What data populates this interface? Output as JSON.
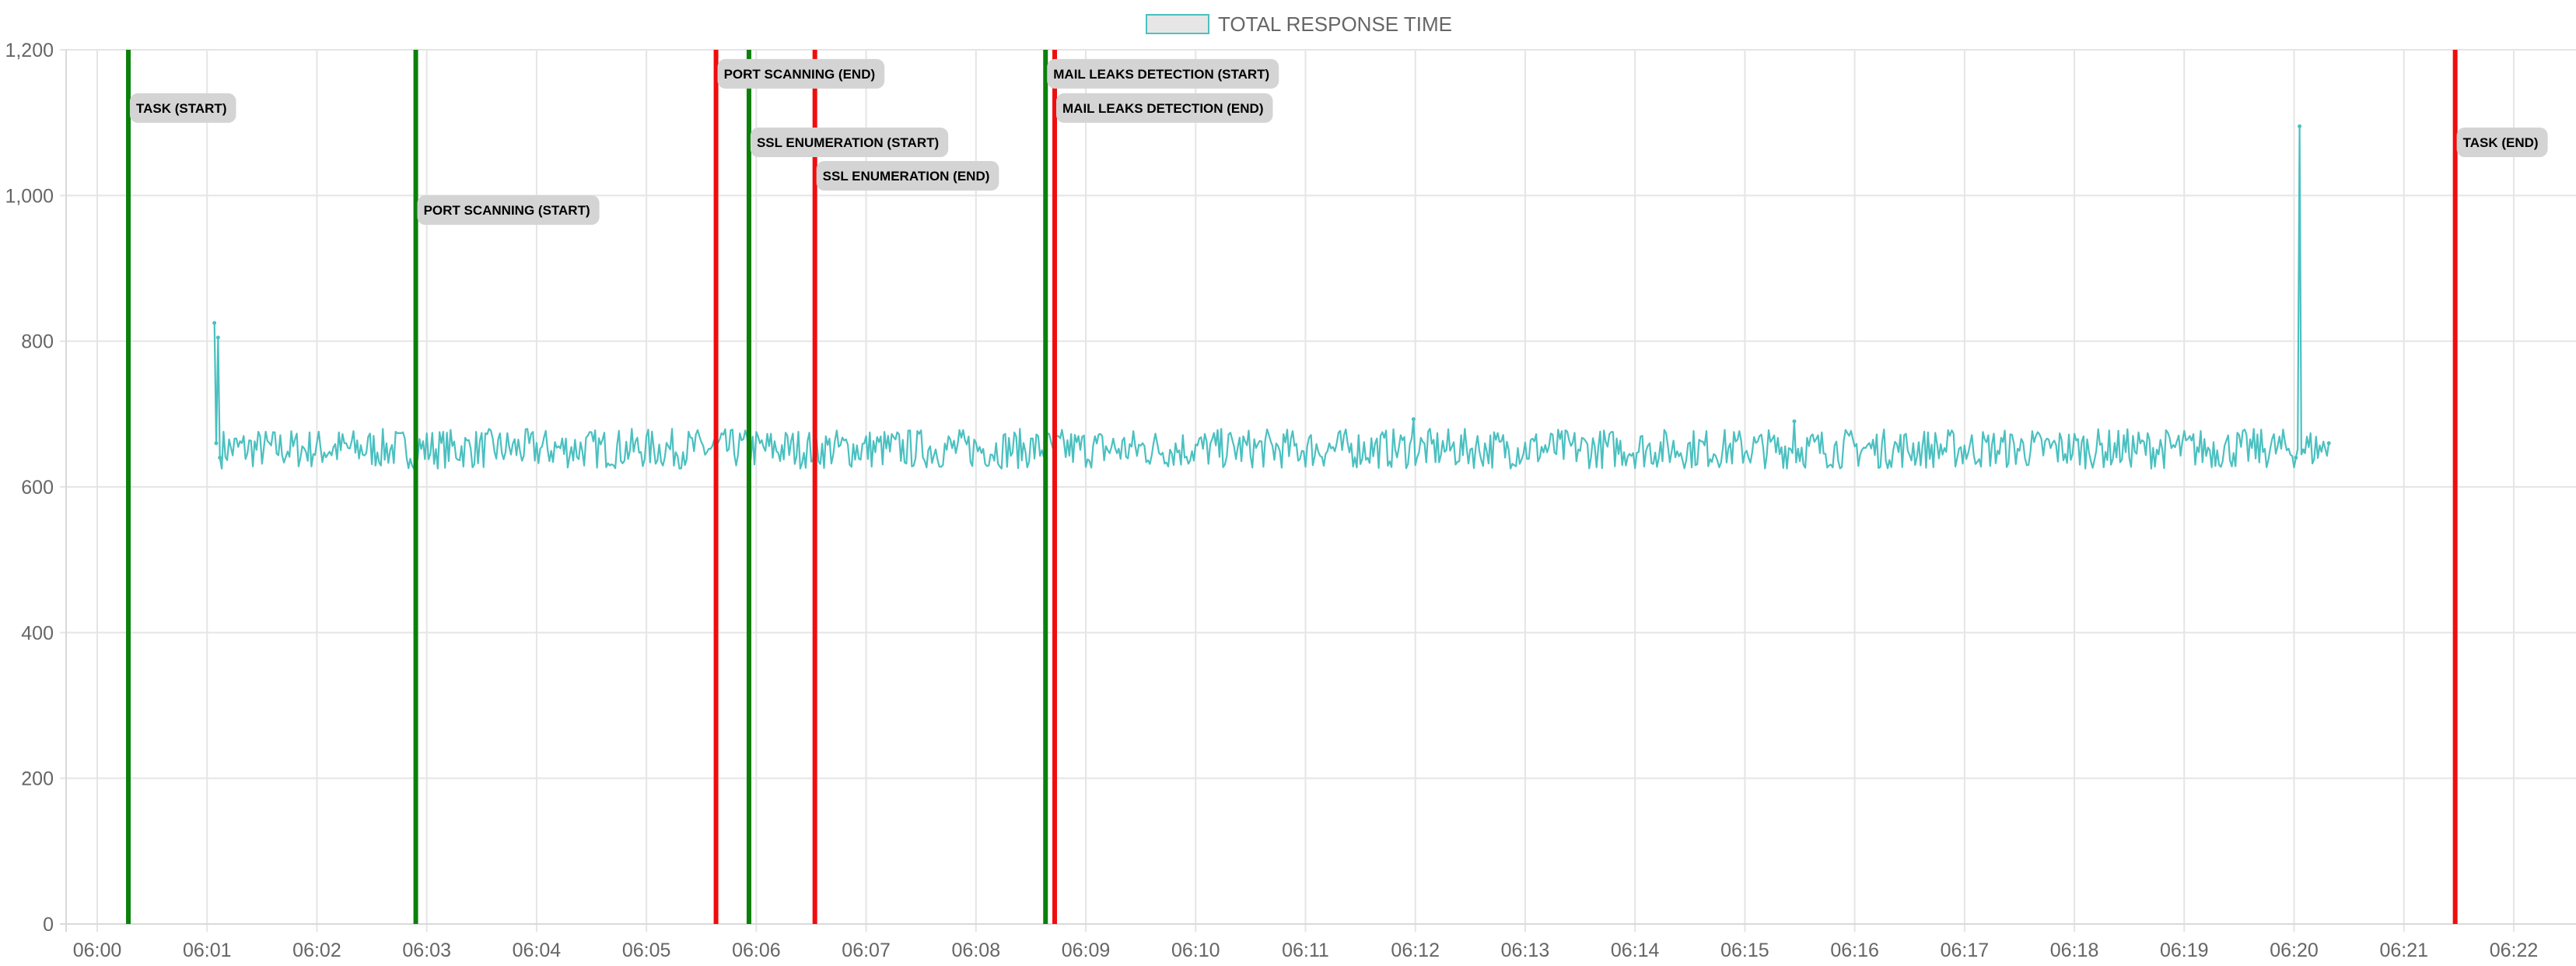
{
  "legend": {
    "label": "TOTAL RESPONSE TIME"
  },
  "colors": {
    "line": "#4bc0c0",
    "legend_fill": "#e6e6e6",
    "start_marker": "#0b800b",
    "end_marker": "#f00d0d",
    "grid": "#e5e5e5",
    "annotation_bg": "#d4d4d4"
  },
  "chart_data": {
    "type": "line",
    "title": "",
    "xlabel": "",
    "ylabel": "",
    "ylim": [
      0,
      1200
    ],
    "xlim": [
      "05:59:43",
      "06:22:34"
    ],
    "grid": true,
    "legend_position": "top-center",
    "y_ticks": [
      "0",
      "200",
      "400",
      "600",
      "800",
      "1,000",
      "1,200"
    ],
    "x_ticks": [
      "06:00",
      "06:01",
      "06:02",
      "06:03",
      "06:04",
      "06:05",
      "06:06",
      "06:07",
      "06:08",
      "06:09",
      "06:10",
      "06:11",
      "06:12",
      "06:13",
      "06:14",
      "06:15",
      "06:16",
      "06:17",
      "06:18",
      "06:19",
      "06:20",
      "06:21",
      "06:22"
    ],
    "series": [
      {
        "name": "TOTAL RESPONSE TIME",
        "start_time": "06:01:04",
        "end_time": "06:20:19",
        "typical_range": [
          625,
          690
        ],
        "points": [
          [
            "06:01:04",
            825
          ],
          [
            "06:01:05",
            660
          ],
          [
            "06:01:06",
            805
          ],
          [
            "06:01:07",
            640
          ],
          [
            "06:11:59",
            693
          ],
          [
            "06:15:27",
            690
          ],
          [
            "06:20:01",
            640
          ],
          [
            "06:20:03",
            1095
          ],
          [
            "06:20:05",
            650
          ],
          [
            "06:20:19",
            660
          ]
        ]
      }
    ],
    "annotations": [
      {
        "label": "TASK (START)",
        "time": "06:00:17",
        "kind": "start",
        "label_y": 1120
      },
      {
        "label": "PORT SCANNING (START)",
        "time": "06:02:54",
        "kind": "start",
        "label_y": 980
      },
      {
        "label": "PORT SCANNING (END)",
        "time": "06:05:38",
        "kind": "end",
        "label_y": 1167
      },
      {
        "label": "SSL ENUMERATION (START)",
        "time": "06:05:56",
        "kind": "start",
        "label_y": 1073
      },
      {
        "label": "SSL ENUMERATION (END)",
        "time": "06:06:32",
        "kind": "end",
        "label_y": 1027
      },
      {
        "label": "MAIL LEAKS DETECTION (START)",
        "time": "06:08:38",
        "kind": "start",
        "label_y": 1167
      },
      {
        "label": "MAIL LEAKS DETECTION (END)",
        "time": "06:08:43",
        "kind": "end",
        "label_y": 1120
      },
      {
        "label": "TASK (END)",
        "time": "06:21:28",
        "kind": "end",
        "label_y": 1073
      }
    ]
  }
}
